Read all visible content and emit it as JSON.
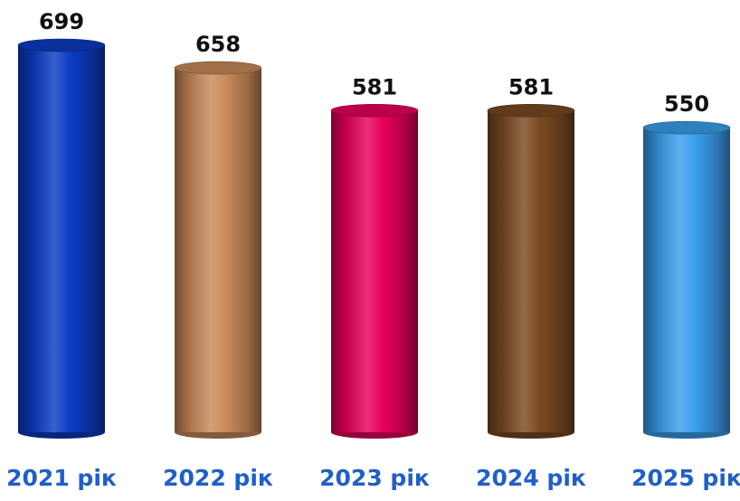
{
  "chart_data": {
    "type": "bar",
    "style": "cylinder",
    "categories": [
      "2021 рік",
      "2022 рік",
      "2023 рік",
      "2024 рік",
      "2025 рік"
    ],
    "values": [
      699,
      658,
      581,
      581,
      550
    ],
    "data_labels": [
      "699",
      "658",
      "581",
      "581",
      "550"
    ],
    "bar_colors": [
      "#0b3cc4",
      "#c98a5a",
      "#e8005a",
      "#7a4a22",
      "#3aa0ee"
    ],
    "category_label_color": "#1f5fc8",
    "data_label_color": "#111111",
    "title": "",
    "xlabel": "",
    "ylabel": "",
    "ylim": [
      0,
      700
    ],
    "grid": false,
    "legend": "none"
  }
}
